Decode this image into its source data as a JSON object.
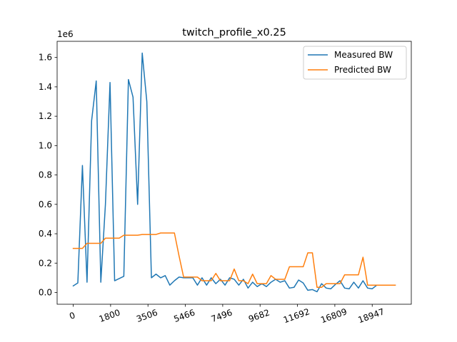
{
  "chart_data": {
    "type": "line",
    "title": "twitch_profile_x0.25",
    "xlabel": "",
    "ylabel": "",
    "y_scale_label": "1e6",
    "x_tick_labels": [
      "0",
      "1800",
      "3506",
      "5466",
      "7496",
      "9682",
      "11692",
      "16809",
      "18947"
    ],
    "y_ticks": [
      0.0,
      0.2,
      0.4,
      0.6,
      0.8,
      1.0,
      1.2,
      1.4,
      1.6
    ],
    "y_tick_labels": [
      "0.0",
      "0.2",
      "0.4",
      "0.6",
      "0.8",
      "1.0",
      "1.2",
      "1.4",
      "1.6"
    ],
    "xlim": [
      -3.5,
      73.5
    ],
    "ylim": [
      -0.08,
      1.71
    ],
    "legend_position": "upper right",
    "grid": false,
    "series": [
      {
        "name": "Measured BW",
        "color": "#1f77b4",
        "x": [
          0,
          1,
          2,
          3,
          4,
          5,
          6,
          7,
          8,
          9,
          10,
          11,
          12,
          13,
          14,
          15,
          16,
          17,
          18,
          19,
          20,
          21,
          22,
          23,
          24,
          25,
          26,
          27,
          28,
          29,
          30,
          31,
          32,
          33,
          34,
          35,
          36,
          37,
          38,
          39,
          40,
          41,
          42,
          43,
          44,
          45,
          46,
          47,
          48,
          49,
          50,
          51,
          52,
          53,
          54,
          55,
          56,
          57,
          58,
          59,
          60,
          61,
          62,
          63,
          64,
          65,
          66,
          67,
          68,
          69,
          70
        ],
        "values": [
          0.045,
          0.065,
          0.865,
          0.07,
          1.17,
          1.44,
          0.07,
          0.6,
          1.43,
          0.08,
          0.095,
          0.11,
          1.45,
          1.33,
          0.6,
          1.63,
          1.3,
          0.1,
          0.125,
          0.1,
          0.115,
          0.05,
          0.08,
          0.105,
          0.1,
          0.1,
          0.1,
          0.05,
          0.1,
          0.05,
          0.1,
          0.06,
          0.09,
          0.05,
          0.1,
          0.09,
          0.05,
          0.09,
          0.03,
          0.07,
          0.04,
          0.06,
          0.04,
          0.07,
          0.09,
          0.07,
          0.08,
          0.03,
          0.035,
          0.085,
          0.065,
          0.015,
          0.02,
          0.005,
          0.06,
          0.03,
          0.025,
          0.055,
          0.08,
          0.03,
          0.025,
          0.07,
          0.03,
          0.08,
          0.03,
          0.025,
          0.05,
          0.05,
          0.05,
          0.05,
          0.05
        ]
      },
      {
        "name": "Predicted BW",
        "color": "#ff7f0e",
        "x": [
          0,
          1,
          2,
          3,
          4,
          5,
          6,
          7,
          8,
          9,
          10,
          11,
          12,
          13,
          14,
          15,
          16,
          17,
          18,
          19,
          20,
          21,
          22,
          23,
          24,
          25,
          26,
          27,
          28,
          29,
          30,
          31,
          32,
          33,
          34,
          35,
          36,
          37,
          38,
          39,
          40,
          41,
          42,
          43,
          44,
          45,
          46,
          47,
          48,
          49,
          50,
          51,
          52,
          53,
          54,
          55,
          56,
          57,
          58,
          59,
          60,
          61,
          62,
          63,
          64,
          65,
          66,
          67,
          68,
          69,
          70
        ],
        "values": [
          0.3,
          0.3,
          0.3,
          0.335,
          0.335,
          0.335,
          0.335,
          0.37,
          0.37,
          0.37,
          0.37,
          0.39,
          0.39,
          0.39,
          0.39,
          0.395,
          0.395,
          0.395,
          0.395,
          0.405,
          0.405,
          0.405,
          0.405,
          0.25,
          0.105,
          0.105,
          0.105,
          0.105,
          0.08,
          0.08,
          0.08,
          0.13,
          0.08,
          0.08,
          0.08,
          0.16,
          0.08,
          0.08,
          0.06,
          0.125,
          0.06,
          0.06,
          0.06,
          0.115,
          0.09,
          0.09,
          0.09,
          0.175,
          0.175,
          0.175,
          0.175,
          0.27,
          0.27,
          0.035,
          0.035,
          0.06,
          0.06,
          0.06,
          0.06,
          0.12,
          0.12,
          0.12,
          0.12,
          0.24,
          0.05,
          0.05,
          0.05,
          0.05,
          0.05,
          0.05,
          0.05
        ]
      }
    ]
  }
}
